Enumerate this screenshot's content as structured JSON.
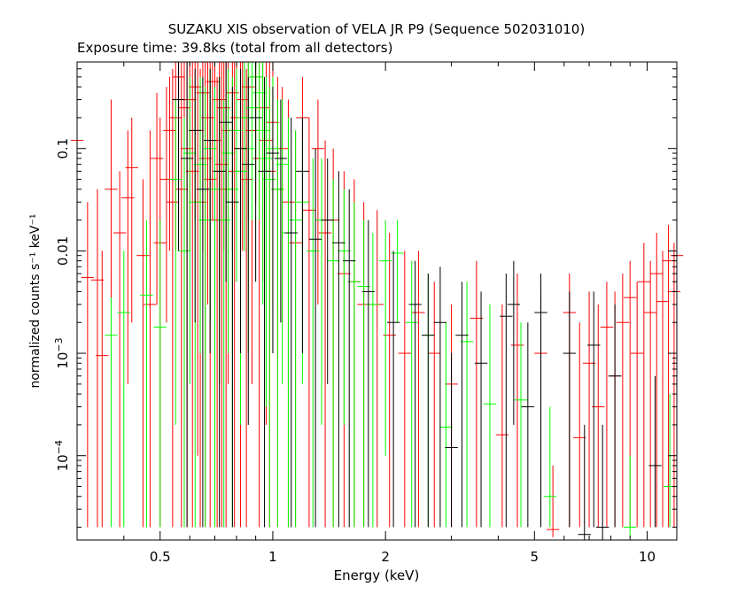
{
  "chart_data": {
    "type": "scatter",
    "title": "SUZAKU XIS observation of VELA JR P9 (Sequence 502031010)",
    "subtitle": "Exposure time: 39.8ks (total from all detectors)",
    "xlabel": "Energy (keV)",
    "ylabel": "normalized counts s⁻¹ keV⁻¹",
    "x_scale": "log",
    "y_scale": "log",
    "xlim": [
      0.3,
      12
    ],
    "ylim": [
      1.5e-05,
      0.7
    ],
    "grid": false,
    "legend": "none",
    "x_ticks": [
      {
        "value": 0.5,
        "label": "0.5"
      },
      {
        "value": 1,
        "label": "1"
      },
      {
        "value": 2,
        "label": "2"
      },
      {
        "value": 5,
        "label": "5"
      },
      {
        "value": 10,
        "label": "10"
      }
    ],
    "y_ticks": [
      {
        "value": 0.1,
        "label": "0.1"
      },
      {
        "value": 0.01,
        "label": "0.01"
      },
      {
        "value": 0.001,
        "label": "10",
        "exp": "−3"
      },
      {
        "value": 0.0001,
        "label": "10",
        "exp": "−4"
      }
    ],
    "series": [
      {
        "color": "#ff0000",
        "points": [
          [
            0.3,
            0.12,
            0.0022,
            0.7
          ],
          [
            0.32,
            0.0055,
            2e-05,
            0.03
          ],
          [
            0.34,
            0.0052,
            2e-05,
            0.04
          ],
          [
            0.35,
            0.00095,
            2e-05,
            0.01
          ],
          [
            0.37,
            0.04,
            0.0005,
            0.3
          ],
          [
            0.39,
            0.015,
            2e-05,
            0.06
          ],
          [
            0.41,
            0.033,
            0.0005,
            0.15
          ],
          [
            0.42,
            0.065,
            0.002,
            0.2
          ],
          [
            0.45,
            0.009,
            2e-05,
            0.05
          ],
          [
            0.47,
            0.003,
            2e-05,
            0.15
          ],
          [
            0.49,
            0.08,
            0.003,
            0.35
          ],
          [
            0.5,
            0.012,
            2e-05,
            0.2
          ],
          [
            0.52,
            0.05,
            0.002,
            0.4
          ],
          [
            0.53,
            0.15,
            0.01,
            0.5
          ],
          [
            0.54,
            0.03,
            2e-05,
            0.6
          ],
          [
            0.55,
            0.2,
            0.01,
            0.7
          ],
          [
            0.56,
            0.5,
            0.02,
            0.7
          ],
          [
            0.57,
            0.04,
            2e-05,
            0.7
          ],
          [
            0.58,
            0.25,
            0.005,
            0.7
          ],
          [
            0.59,
            0.1,
            2e-05,
            0.7
          ],
          [
            0.6,
            0.3,
            0.01,
            0.7
          ],
          [
            0.61,
            0.06,
            2e-05,
            0.7
          ],
          [
            0.62,
            0.4,
            0.02,
            0.7
          ],
          [
            0.63,
            0.15,
            0.0001,
            0.7
          ],
          [
            0.64,
            0.03,
            2e-05,
            0.6
          ],
          [
            0.65,
            0.35,
            0.01,
            0.7
          ],
          [
            0.66,
            0.08,
            2e-05,
            0.7
          ],
          [
            0.67,
            0.2,
            0.003,
            0.7
          ],
          [
            0.68,
            0.05,
            2e-05,
            0.7
          ],
          [
            0.69,
            0.45,
            0.02,
            0.7
          ],
          [
            0.7,
            0.12,
            2e-05,
            0.7
          ],
          [
            0.71,
            0.02,
            2e-05,
            0.5
          ],
          [
            0.72,
            0.3,
            0.005,
            0.7
          ],
          [
            0.73,
            0.07,
            2e-05,
            0.7
          ],
          [
            0.74,
            0.25,
            0.01,
            0.7
          ],
          [
            0.75,
            0.04,
            2e-05,
            0.7
          ],
          [
            0.76,
            0.15,
            0.0005,
            0.7
          ],
          [
            0.78,
            0.35,
            0.01,
            0.7
          ],
          [
            0.79,
            0.06,
            2e-05,
            0.7
          ],
          [
            0.8,
            0.2,
            0.005,
            0.7
          ],
          [
            0.82,
            0.1,
            2e-05,
            0.7
          ],
          [
            0.83,
            0.3,
            0.01,
            0.7
          ],
          [
            0.85,
            0.05,
            2e-05,
            0.6
          ],
          [
            0.86,
            0.4,
            0.02,
            0.7
          ],
          [
            0.88,
            0.15,
            0.0005,
            0.7
          ],
          [
            0.9,
            0.5,
            0.03,
            0.7
          ],
          [
            0.92,
            0.08,
            2e-05,
            0.7
          ],
          [
            0.94,
            0.25,
            0.005,
            0.7
          ],
          [
            0.96,
            0.12,
            0.0002,
            0.7
          ],
          [
            0.98,
            0.06,
            2e-05,
            0.7
          ],
          [
            1.0,
            0.18,
            0.003,
            0.7
          ],
          [
            1.03,
            0.04,
            2e-05,
            0.5
          ],
          [
            1.06,
            0.1,
            0.002,
            0.4
          ],
          [
            1.1,
            0.03,
            2e-05,
            0.3
          ],
          [
            1.15,
            0.012,
            2e-05,
            0.15
          ],
          [
            1.2,
            0.2,
            0.005,
            0.5
          ],
          [
            1.25,
            0.025,
            2e-05,
            0.2
          ],
          [
            1.32,
            0.1,
            0.003,
            0.3
          ],
          [
            1.38,
            0.015,
            2e-05,
            0.12
          ],
          [
            1.45,
            0.02,
            2e-05,
            0.1
          ],
          [
            1.55,
            0.006,
            2e-05,
            0.06
          ],
          [
            1.65,
            0.005,
            2e-05,
            0.05
          ],
          [
            1.75,
            0.003,
            2e-05,
            0.03
          ],
          [
            1.9,
            0.003,
            2e-05,
            0.025
          ],
          [
            2.05,
            0.0015,
            2e-05,
            0.015
          ],
          [
            2.25,
            0.001,
            2e-05,
            0.01
          ],
          [
            2.45,
            0.0025,
            2e-05,
            0.01
          ],
          [
            2.7,
            0.001,
            2e-05,
            0.005
          ],
          [
            3.0,
            0.0005,
            2e-05,
            0.003
          ],
          [
            3.5,
            0.0022,
            2e-05,
            0.008
          ],
          [
            4.1,
            0.00016,
            2e-05,
            0.003
          ],
          [
            4.5,
            0.0012,
            2e-05,
            0.006
          ],
          [
            5.2,
            0.001,
            2e-05,
            0.004
          ],
          [
            5.6,
            1.9e-05,
            1.6e-05,
            8e-05
          ],
          [
            6.2,
            0.0025,
            2e-05,
            0.006
          ],
          [
            6.6,
            0.00015,
            2e-05,
            0.002
          ],
          [
            7.0,
            0.0008,
            2e-05,
            0.004
          ],
          [
            7.4,
            0.0003,
            2e-05,
            0.003
          ],
          [
            7.8,
            0.0018,
            2e-05,
            0.005
          ],
          [
            8.2,
            0.0006,
            2e-05,
            0.004
          ],
          [
            8.6,
            0.002,
            2e-05,
            0.006
          ],
          [
            9.0,
            0.0035,
            2e-05,
            0.008
          ],
          [
            9.4,
            0.001,
            2e-05,
            0.005
          ],
          [
            9.8,
            0.005,
            2e-05,
            0.012
          ],
          [
            10.2,
            0.0025,
            2e-05,
            0.008
          ],
          [
            10.6,
            0.006,
            2e-05,
            0.015
          ],
          [
            11.0,
            0.0032,
            2e-05,
            0.01
          ],
          [
            11.4,
            0.008,
            2e-05,
            0.018
          ],
          [
            11.8,
            0.004,
            2e-05,
            0.012
          ],
          [
            12.0,
            0.009,
            2e-05,
            0.02
          ]
        ]
      },
      {
        "color": "#00ff00",
        "points": [
          [
            0.37,
            0.0015,
            2e-05,
            0.0035
          ],
          [
            0.4,
            0.0025,
            2e-05,
            0.01
          ],
          [
            0.46,
            0.0037,
            2e-05,
            0.02
          ],
          [
            0.5,
            0.0018,
            2e-05,
            0.02
          ],
          [
            0.55,
            0.05,
            0.0002,
            0.3
          ],
          [
            0.58,
            0.01,
            2e-05,
            0.2
          ],
          [
            0.6,
            0.09,
            0.0005,
            0.5
          ],
          [
            0.62,
            0.03,
            2e-05,
            0.3
          ],
          [
            0.64,
            0.07,
            0.001,
            0.5
          ],
          [
            0.66,
            0.02,
            2e-05,
            0.4
          ],
          [
            0.68,
            0.1,
            0.002,
            0.6
          ],
          [
            0.7,
            0.04,
            2e-05,
            0.4
          ],
          [
            0.72,
            0.06,
            0.0005,
            0.5
          ],
          [
            0.74,
            0.02,
            2e-05,
            0.3
          ],
          [
            0.76,
            0.09,
            0.001,
            0.6
          ],
          [
            0.78,
            0.04,
            2e-05,
            0.5
          ],
          [
            0.8,
            0.15,
            0.005,
            0.6
          ],
          [
            0.82,
            0.06,
            0.0002,
            0.6
          ],
          [
            0.84,
            0.2,
            0.01,
            0.7
          ],
          [
            0.86,
            0.1,
            0.001,
            0.7
          ],
          [
            0.88,
            0.25,
            0.02,
            0.7
          ],
          [
            0.9,
            0.5,
            0.05,
            0.7
          ],
          [
            0.92,
            0.35,
            0.02,
            0.7
          ],
          [
            0.94,
            0.15,
            0.003,
            0.7
          ],
          [
            0.96,
            0.08,
            0.0003,
            0.5
          ],
          [
            0.98,
            0.05,
            2e-05,
            0.4
          ],
          [
            1.0,
            0.1,
            0.001,
            0.5
          ],
          [
            1.03,
            0.04,
            2e-05,
            0.3
          ],
          [
            1.06,
            0.07,
            0.0005,
            0.3
          ],
          [
            1.1,
            0.015,
            2e-05,
            0.2
          ],
          [
            1.15,
            0.02,
            2e-05,
            0.15
          ],
          [
            1.2,
            0.03,
            0.0005,
            0.12
          ],
          [
            1.28,
            0.01,
            2e-05,
            0.08
          ],
          [
            1.35,
            0.02,
            0.0002,
            0.08
          ],
          [
            1.45,
            0.008,
            2e-05,
            0.05
          ],
          [
            1.55,
            0.01,
            0.0002,
            0.04
          ],
          [
            1.65,
            0.005,
            2e-05,
            0.03
          ],
          [
            1.75,
            0.0045,
            2e-05,
            0.02
          ],
          [
            1.85,
            0.003,
            2e-05,
            0.015
          ],
          [
            2.0,
            0.008,
            0.0001,
            0.02
          ],
          [
            2.15,
            0.0095,
            0.002,
            0.02
          ],
          [
            2.35,
            0.002,
            2e-05,
            0.008
          ],
          [
            2.6,
            0.0015,
            2e-05,
            0.006
          ],
          [
            2.9,
            0.00019,
            2e-05,
            0.002
          ],
          [
            3.3,
            0.0013,
            2e-05,
            0.005
          ],
          [
            3.8,
            0.00032,
            2e-05,
            0.003
          ],
          [
            4.6,
            0.00035,
            2e-05,
            0.002
          ],
          [
            5.5,
            4e-05,
            2e-05,
            0.0003
          ],
          [
            9.0,
            2e-05,
            1.6e-05,
            0.0001
          ],
          [
            11.5,
            5e-05,
            2e-05,
            0.0004
          ]
        ]
      },
      {
        "color": "#000000",
        "points": [
          [
            0.56,
            0.3,
            0.01,
            0.7
          ],
          [
            0.59,
            0.08,
            2e-05,
            0.7
          ],
          [
            0.62,
            0.15,
            0.002,
            0.6
          ],
          [
            0.65,
            0.04,
            2e-05,
            0.5
          ],
          [
            0.68,
            0.12,
            0.001,
            0.6
          ],
          [
            0.72,
            0.06,
            2e-05,
            0.5
          ],
          [
            0.75,
            0.18,
            0.005,
            0.7
          ],
          [
            0.78,
            0.03,
            2e-05,
            0.4
          ],
          [
            0.82,
            0.1,
            0.001,
            0.6
          ],
          [
            0.86,
            0.07,
            0.0002,
            0.5
          ],
          [
            0.9,
            0.2,
            0.005,
            0.7
          ],
          [
            0.95,
            0.06,
            2e-05,
            0.5
          ],
          [
            1.0,
            0.09,
            0.001,
            0.4
          ],
          [
            1.05,
            0.08,
            0.002,
            0.3
          ],
          [
            1.12,
            0.015,
            2e-05,
            0.2
          ],
          [
            1.2,
            0.06,
            0.001,
            0.2
          ],
          [
            1.3,
            0.013,
            2e-05,
            0.1
          ],
          [
            1.4,
            0.02,
            0.0005,
            0.08
          ],
          [
            1.5,
            0.012,
            2e-05,
            0.06
          ],
          [
            1.6,
            0.008,
            2e-05,
            0.04
          ],
          [
            1.8,
            0.004,
            2e-05,
            0.02
          ],
          [
            2.1,
            0.002,
            2e-05,
            0.01
          ],
          [
            2.4,
            0.003,
            2e-05,
            0.008
          ],
          [
            2.6,
            0.0015,
            2e-05,
            0.006
          ],
          [
            2.8,
            0.002,
            2e-05,
            0.007
          ],
          [
            3.0,
            0.00012,
            2e-05,
            0.001
          ],
          [
            3.2,
            0.0015,
            2e-05,
            0.005
          ],
          [
            3.6,
            0.0008,
            2e-05,
            0.004
          ],
          [
            4.2,
            0.0023,
            2e-05,
            0.006
          ],
          [
            4.4,
            0.003,
            0.0002,
            0.008
          ],
          [
            4.8,
            0.0003,
            2e-05,
            0.002
          ],
          [
            5.2,
            0.0025,
            2e-05,
            0.006
          ],
          [
            6.2,
            0.001,
            2e-05,
            0.004
          ],
          [
            6.8,
            1.7e-05,
            1.5e-05,
            0.0002
          ],
          [
            7.2,
            0.0012,
            2e-05,
            0.004
          ],
          [
            7.6,
            2e-05,
            1.5e-05,
            0.0002
          ],
          [
            8.2,
            0.0006,
            2e-05,
            0.003
          ],
          [
            10.5,
            8e-05,
            2e-05,
            0.0006
          ]
        ]
      }
    ]
  }
}
